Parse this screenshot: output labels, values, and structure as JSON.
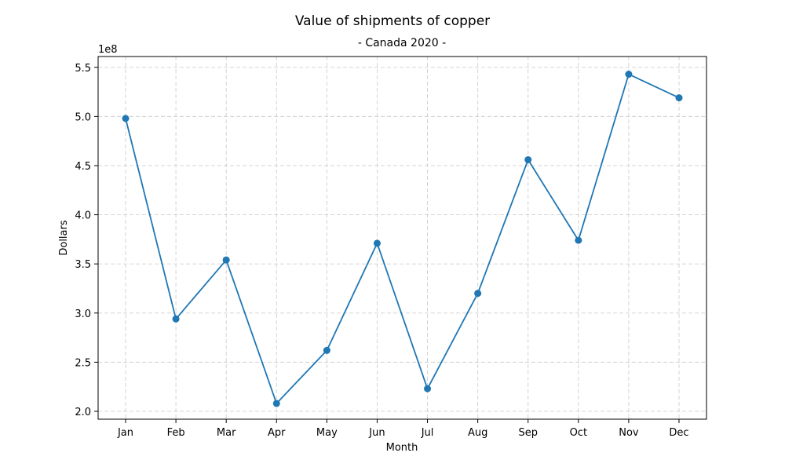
{
  "chart_data": {
    "type": "line",
    "title": "Value of shipments of copper",
    "subtitle": "- Canada 2020 -",
    "xlabel": "Month",
    "ylabel": "Dollars",
    "y_offset_label": "1e8",
    "y_scale": 100000000,
    "categories": [
      "Jan",
      "Feb",
      "Mar",
      "Apr",
      "May",
      "Jun",
      "Jul",
      "Aug",
      "Sep",
      "Oct",
      "Nov",
      "Dec"
    ],
    "series": [
      {
        "values": [
          498000000,
          294000000,
          354000000,
          208000000,
          262000000,
          371000000,
          223000000,
          320000000,
          456000000,
          374000000,
          543000000,
          519000000
        ]
      }
    ],
    "yticks": [
      2.0,
      2.5,
      3.0,
      3.5,
      4.0,
      4.5,
      5.0,
      5.5
    ],
    "ylim": [
      192000000,
      561000000
    ],
    "grid": true,
    "line_color": "#1f77b4"
  }
}
